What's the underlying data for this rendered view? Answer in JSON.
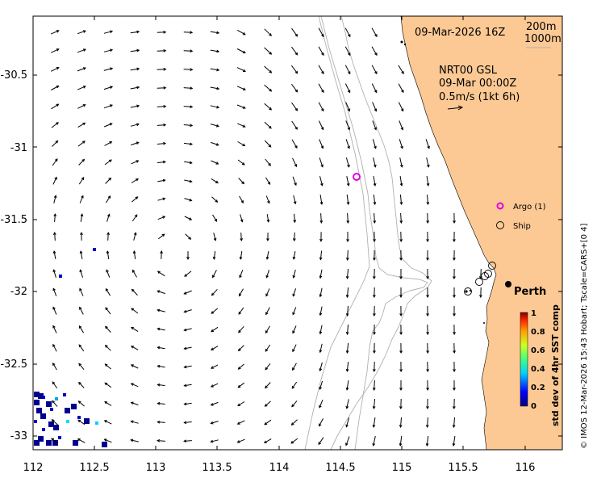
{
  "map": {
    "region": "Perth",
    "date_label": "09-Mar-2026 16Z",
    "product": "NRT00 GSL",
    "current_time": "09-Mar 00:00Z",
    "scale_label": "0.5m/s (1kt 6h)",
    "isobaths": [
      "200m",
      "1000m"
    ],
    "lon_ticks": [
      "112",
      "112.5",
      "113",
      "113.5",
      "114",
      "114.5",
      "115",
      "115.5",
      "116"
    ],
    "lat_ticks": [
      "-30.5",
      "-31",
      "-31.5",
      "-32",
      "-32.5",
      "-33"
    ],
    "city": "Perth",
    "legend": {
      "argo": "Argo (1)",
      "ship": "Ship"
    },
    "colorbar": {
      "title": "std dev of 4hr SST comp",
      "ticks": [
        "1",
        "0.8",
        "0.6",
        "0.4",
        "0.2",
        "0"
      ]
    },
    "credit": "© IMOS 12-Mar-2026 15:43 Hobart; Tscale=CARS+[0 4]",
    "colors": {
      "land": "#fcc994",
      "arrows": "#000000",
      "isobath": "#b0b0b0",
      "argo": "#e000e0"
    }
  }
}
